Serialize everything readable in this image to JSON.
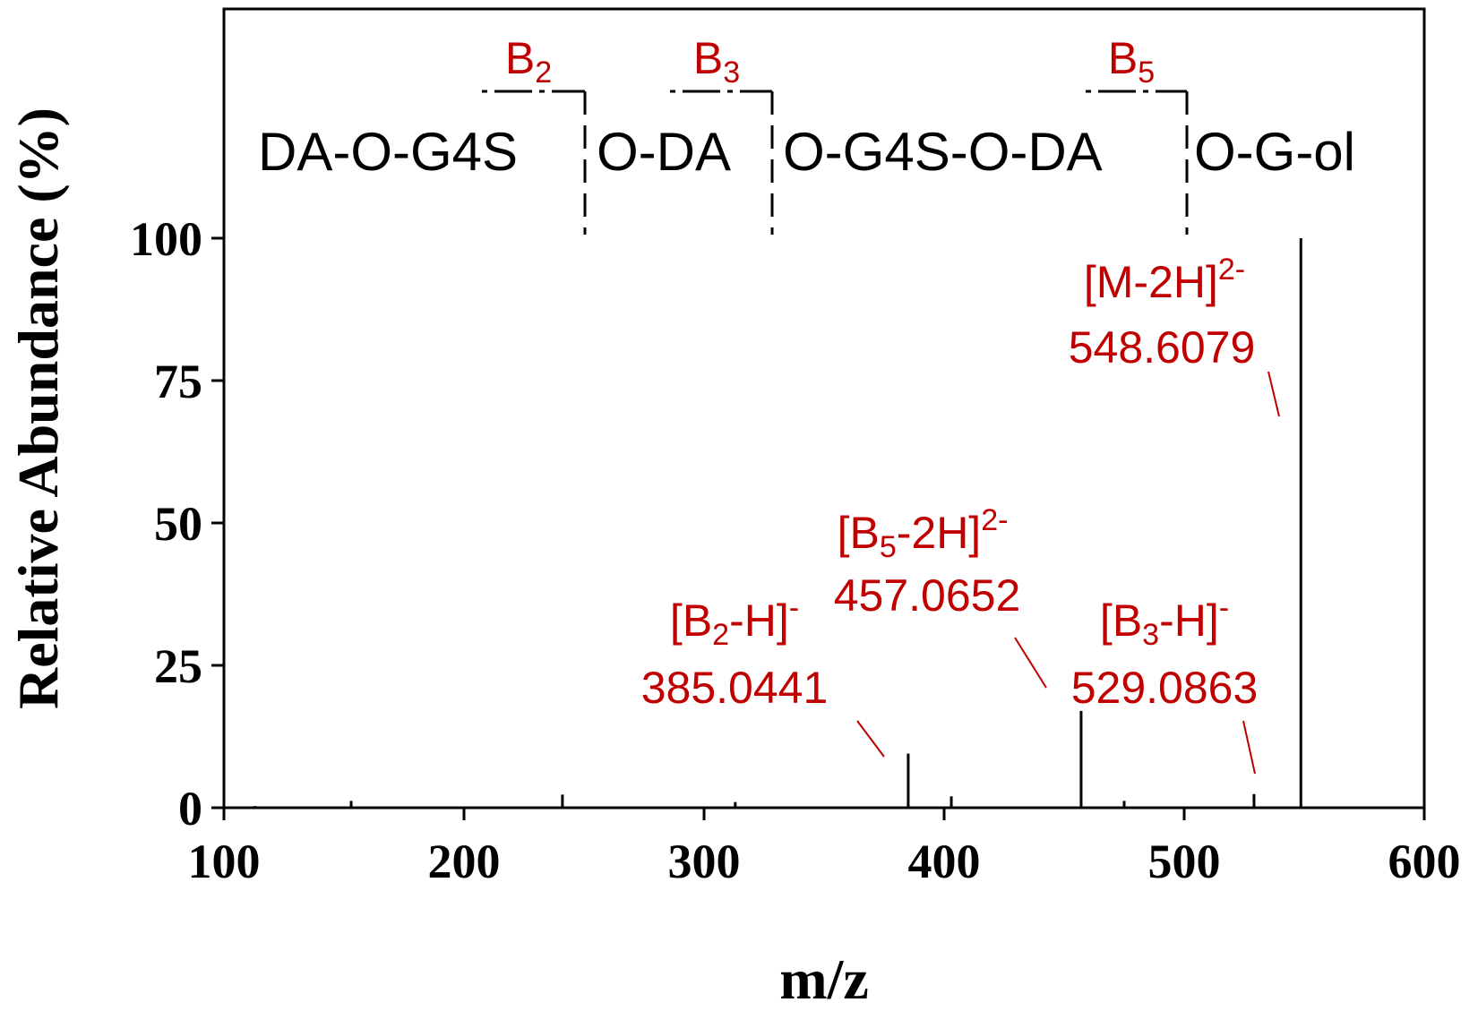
{
  "chart_data": {
    "type": "bar",
    "title": "",
    "xlabel": "m/z",
    "ylabel": "Relative Abundance (%)",
    "xlim": [
      100,
      600
    ],
    "ylim": [
      0,
      100
    ],
    "x_ticks": [
      100,
      200,
      300,
      400,
      500,
      600
    ],
    "y_ticks": [
      0,
      25,
      50,
      75,
      100
    ],
    "grid": false,
    "legend": "none",
    "peaks": [
      {
        "x": 113,
        "y": 0.3
      },
      {
        "x": 153,
        "y": 1.2
      },
      {
        "x": 241,
        "y": 2.3
      },
      {
        "x": 313,
        "y": 1.0
      },
      {
        "x": 385.0441,
        "y": 9.5
      },
      {
        "x": 403,
        "y": 2.0
      },
      {
        "x": 457.0652,
        "y": 17.0
      },
      {
        "x": 475,
        "y": 1.2
      },
      {
        "x": 529.0863,
        "y": 2.4
      },
      {
        "x": 548.6079,
        "y": 100
      }
    ],
    "annotations": [
      {
        "ion": "[B",
        "sub": "2",
        "suffix": "-H]",
        "sup": "-",
        "value": "385.0441"
      },
      {
        "ion": "[B",
        "sub": "5",
        "suffix": "-2H]",
        "sup": "2-",
        "value": "457.0652"
      },
      {
        "ion": "[B",
        "sub": "3",
        "suffix": "-H]",
        "sup": "-",
        "value": "529.0863"
      },
      {
        "ion": "[M-2H]",
        "sub": "",
        "suffix": "",
        "sup": "2-",
        "value": "548.6079"
      }
    ],
    "structure": {
      "segments": [
        "DA-O-G4S",
        "O-DA",
        "O-G4S-O-DA",
        "O-G-ol"
      ],
      "cleavages": [
        {
          "letter": "B",
          "sub": "2"
        },
        {
          "letter": "B",
          "sub": "3"
        },
        {
          "letter": "B",
          "sub": "5"
        }
      ]
    },
    "colors": {
      "axis": "#000000",
      "peak": "#000000",
      "annotation": "#c00000"
    }
  }
}
